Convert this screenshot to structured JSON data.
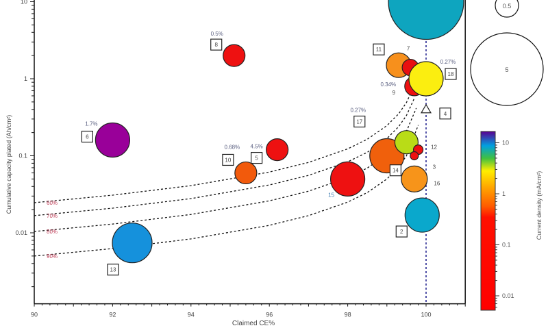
{
  "chart_data": {
    "type": "scatter",
    "subtype": "bubble",
    "xlabel": "Claimed CE%",
    "ylabel": "Cumulative capacity plated (Ah/cm²)",
    "xlim": [
      90,
      101
    ],
    "ylim": [
      0.0012,
      10
    ],
    "yscale": "log",
    "xticks": [
      "90",
      "92",
      "94",
      "96",
      "98",
      "100"
    ],
    "yticks": [
      "0.01",
      "0.1",
      "1",
      "10"
    ],
    "grid": false,
    "reference_line": {
      "x": 100,
      "style": "dotted",
      "color": "#1a1a8c"
    },
    "points": [
      {
        "id": "",
        "x": 100,
        "y": 10,
        "size": 5.5,
        "color": "#0ea5bf"
      },
      {
        "id": "8",
        "x": 95.1,
        "y": 2.0,
        "size": 1.6,
        "color": "#ee1111",
        "note": "0.5%"
      },
      {
        "id": "6",
        "x": 92.0,
        "y": 0.16,
        "size": 2.5,
        "color": "#990099",
        "note": "1.7%"
      },
      {
        "id": "5",
        "x": 96.2,
        "y": 0.12,
        "size": 1.6,
        "color": "#ee1111",
        "note": "4.5%"
      },
      {
        "id": "10",
        "x": 95.4,
        "y": 0.06,
        "size": 1.6,
        "color": "#f25a0c",
        "note": "0.68%"
      },
      {
        "id": "13",
        "x": 92.5,
        "y": 0.0074,
        "size": 2.9,
        "color": "#1591dc"
      },
      {
        "id": "15",
        "x": 98.0,
        "y": 0.05,
        "size": 2.5,
        "color": "#ee1111"
      },
      {
        "id": "17",
        "x": 99.0,
        "y": 0.1,
        "size": 2.5,
        "color": "#f0600c",
        "note": "0.27%"
      },
      {
        "id": "14",
        "x": 99.5,
        "y": 0.15,
        "size": 1.7,
        "color": "#b9dc17"
      },
      {
        "id": "12",
        "x": 99.8,
        "y": 0.12,
        "size": 0.7,
        "color": "#ee1111"
      },
      {
        "id": "3",
        "x": 99.7,
        "y": 0.1,
        "size": 0.6,
        "color": "#ee1111"
      },
      {
        "id": "16",
        "x": 99.7,
        "y": 0.05,
        "size": 1.9,
        "color": "#f7941a"
      },
      {
        "id": "2",
        "x": 99.9,
        "y": 0.017,
        "size": 2.5,
        "color": "#0aa8cc"
      },
      {
        "id": "11",
        "x": 99.3,
        "y": 1.5,
        "size": 1.8,
        "color": "#f7901c"
      },
      {
        "id": "7",
        "x": 99.6,
        "y": 1.4,
        "size": 1.2,
        "color": "#e81010"
      },
      {
        "id": "9",
        "x": 99.7,
        "y": 0.8,
        "size": 1.4,
        "color": "#ee1111",
        "note": "0.34%"
      },
      {
        "id": "18",
        "x": 100,
        "y": 1.0,
        "size": 2.5,
        "color": "#fbee10",
        "note": "0.27%"
      },
      {
        "id": "4",
        "x": 100,
        "y": 0.4,
        "marker": "triangle"
      }
    ],
    "iso_lines": [
      {
        "label": "60%",
        "x": [
          90,
          92,
          94,
          96,
          97,
          98,
          98.5,
          99,
          99.3,
          99.5,
          99.7
        ],
        "y": [
          0.0246,
          0.0308,
          0.041,
          0.0615,
          0.082,
          0.123,
          0.164,
          0.246,
          0.351,
          0.492,
          0.82
        ]
      },
      {
        "label": "70%",
        "x": [
          90,
          92,
          94,
          96,
          97,
          98,
          98.5,
          99,
          99.3,
          99.5,
          99.7
        ],
        "y": [
          0.0167,
          0.0209,
          0.0278,
          0.0418,
          0.0557,
          0.0835,
          0.111,
          0.167,
          0.239,
          0.334,
          0.557
        ]
      },
      {
        "label": "80%",
        "x": [
          90,
          92,
          94,
          96,
          97,
          98,
          98.5,
          99,
          99.3,
          99.5,
          99.75
        ],
        "y": [
          0.0104,
          0.013,
          0.0173,
          0.026,
          0.0347,
          0.052,
          0.0693,
          0.104,
          0.149,
          0.208,
          0.416
        ]
      },
      {
        "label": "90%",
        "x": [
          90,
          92,
          94,
          96,
          97,
          98,
          98.5,
          99,
          99.3,
          99.5,
          99.8
        ],
        "y": [
          0.005,
          0.00625,
          0.00833,
          0.0125,
          0.0167,
          0.025,
          0.0333,
          0.05,
          0.0714,
          0.1,
          0.25
        ]
      }
    ],
    "colorbar": {
      "label": "Current density (mA/cm²)",
      "scale": "log",
      "range": [
        0.006,
        15
      ],
      "ticks": [
        "0.01",
        "0.1",
        "1",
        "10"
      ]
    },
    "size_legend": {
      "entries": [
        "0.5",
        "5"
      ]
    }
  }
}
